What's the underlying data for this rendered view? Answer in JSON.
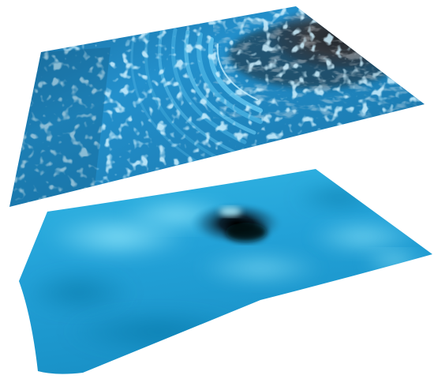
{
  "scene": {
    "background_color": "#ffffff",
    "top_surface": {
      "name": "rough-textured-surface",
      "base_color": "#1e86c2",
      "highlight_color": "#8fd8ff",
      "dark_region_color": "#2a3036",
      "ripple_color": "#4fb6e6",
      "features": [
        "concentric-ripples",
        "dark-rough-patch",
        "speckled-texture"
      ]
    },
    "bottom_surface": {
      "name": "smooth-surface",
      "base_color": "#22a3d8",
      "highlight_color": "#74dcf6",
      "shadow_color": "#0c6f9c",
      "features": [
        "dark-crater-depression",
        "gentle-undulations"
      ]
    }
  }
}
